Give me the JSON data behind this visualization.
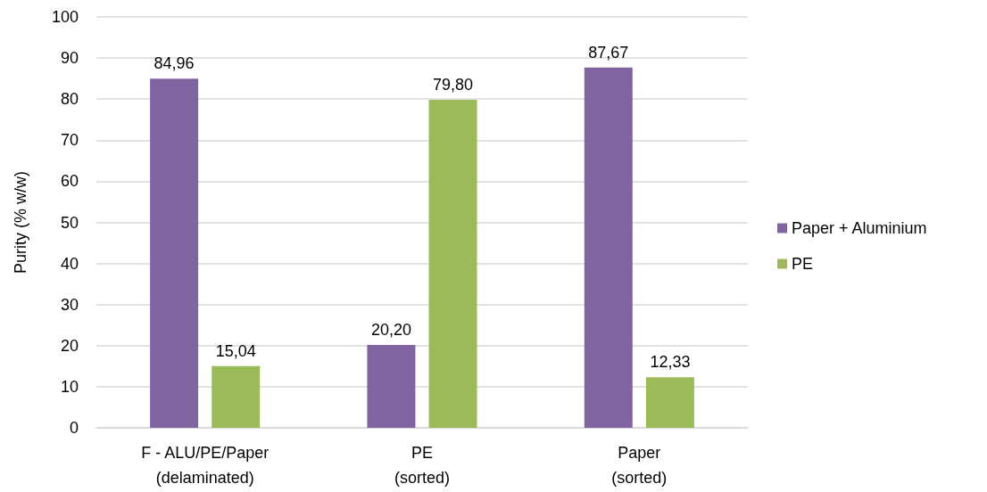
{
  "chart_data": {
    "type": "bar",
    "ylabel": "Purity (% w/w)",
    "categories": [
      "F - ALU/PE/Paper\n(delaminated)",
      "PE\n(sorted)",
      "Paper\n(sorted)"
    ],
    "series": [
      {
        "name": "Paper + Aluminium",
        "color": "#8064a2",
        "values": [
          84.96,
          20.2,
          87.67
        ],
        "value_labels": [
          "84,96",
          "20,20",
          "87,67"
        ]
      },
      {
        "name": "PE",
        "color": "#9bbb59",
        "values": [
          15.04,
          79.8,
          12.33
        ],
        "value_labels": [
          "15,04",
          "79,80",
          "12,33"
        ]
      }
    ],
    "ylim": [
      0,
      100
    ],
    "yticks": [
      0,
      10,
      20,
      30,
      40,
      50,
      60,
      70,
      80,
      90,
      100
    ],
    "grid": "y",
    "legend": "right"
  }
}
